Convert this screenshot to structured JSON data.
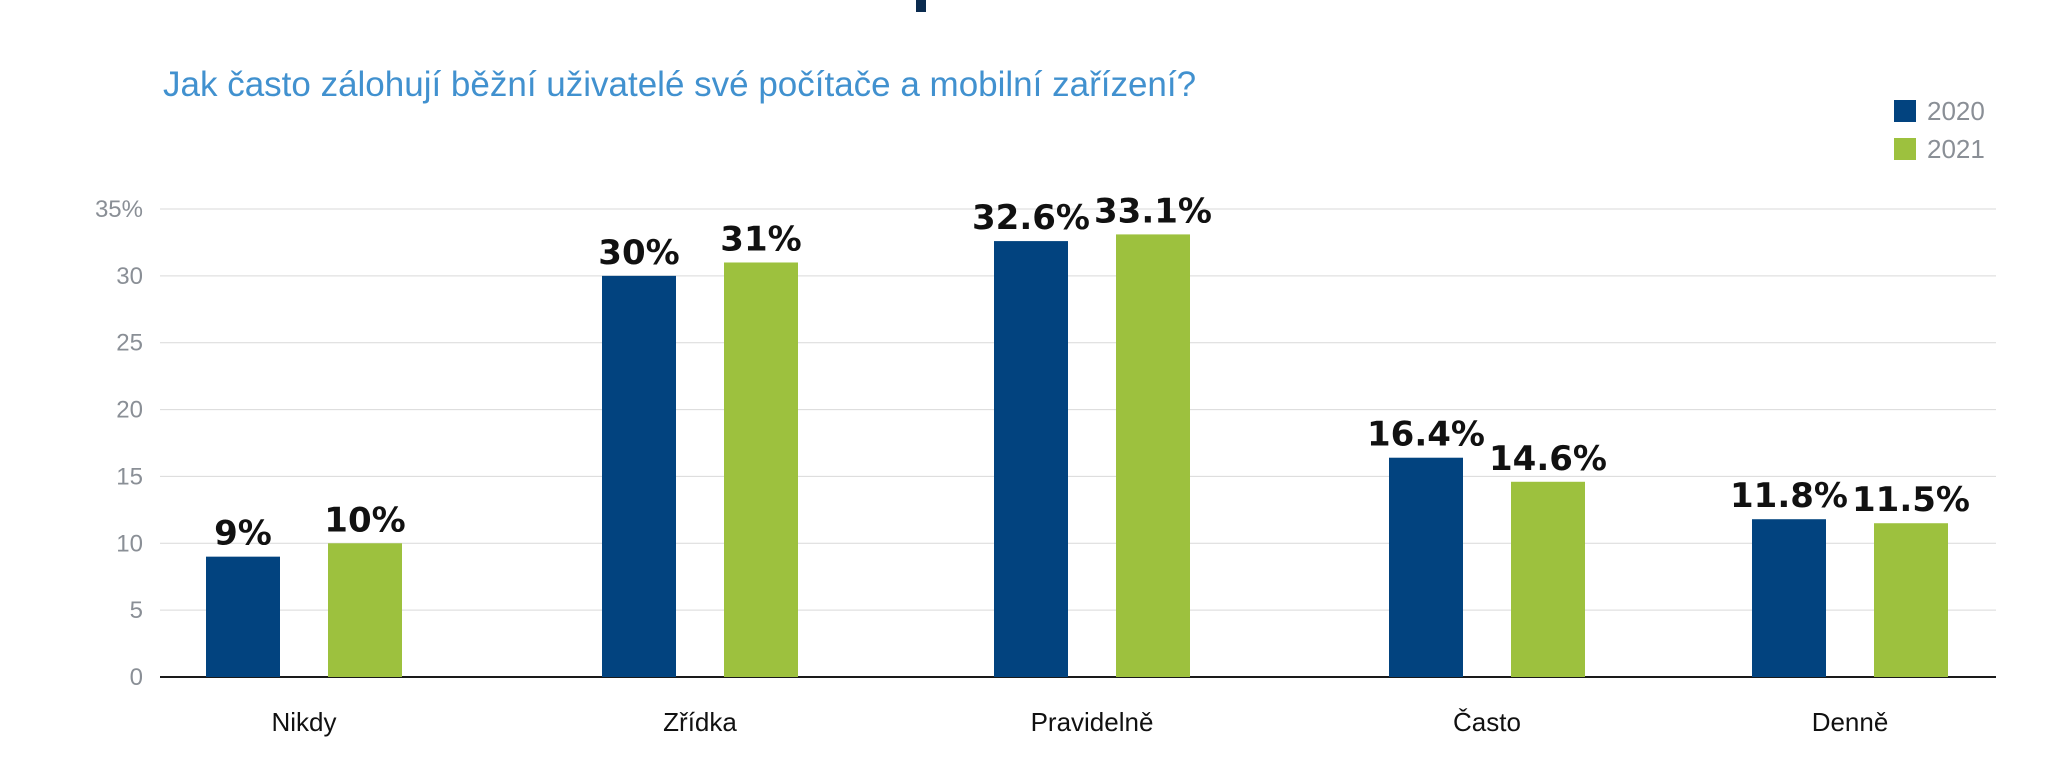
{
  "chart_data": {
    "type": "bar",
    "title": "Jak často zálohují běžní uživatelé své počítače a mobilní zařízení?",
    "categories": [
      "Nikdy",
      "Zřídka",
      "Pravidelně",
      "Často",
      "Denně"
    ],
    "series": [
      {
        "name": "2020",
        "values": [
          9,
          30,
          32.6,
          16.4,
          11.8
        ],
        "labels": [
          "9%",
          "30%",
          "32.6%",
          "16.4%",
          "11.8%"
        ],
        "color": "#02437f"
      },
      {
        "name": "2021",
        "values": [
          10,
          31,
          33.1,
          14.6,
          11.5
        ],
        "labels": [
          "10%",
          "31%",
          "33.1%",
          "14.6%",
          "11.5%"
        ],
        "color": "#9dc13e"
      }
    ],
    "ylim": [
      0,
      35
    ],
    "yticks": [
      0,
      5,
      10,
      15,
      20,
      25,
      30,
      35
    ],
    "ytick_labels": [
      "0",
      "5",
      "10",
      "15",
      "20",
      "25",
      "30",
      "35%"
    ],
    "xlabel": "",
    "ylabel": "",
    "grid": true,
    "legend_position": "top-right",
    "title_color": "#4191cf"
  }
}
